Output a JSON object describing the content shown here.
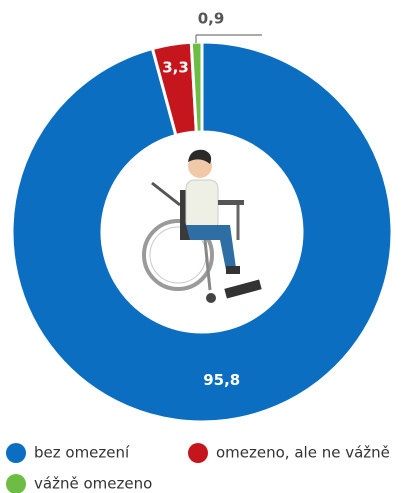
{
  "chart_data": {
    "type": "pie",
    "donut": true,
    "categories": [
      "bez omezení",
      "omezeno, ale ne vážně",
      "vážně omezeno"
    ],
    "values": [
      95.8,
      3.3,
      0.9
    ],
    "value_labels": [
      "95,8",
      "3,3",
      "0,9"
    ],
    "colors": [
      "#0b6ec0",
      "#c5161d",
      "#6dbd45"
    ]
  }
}
